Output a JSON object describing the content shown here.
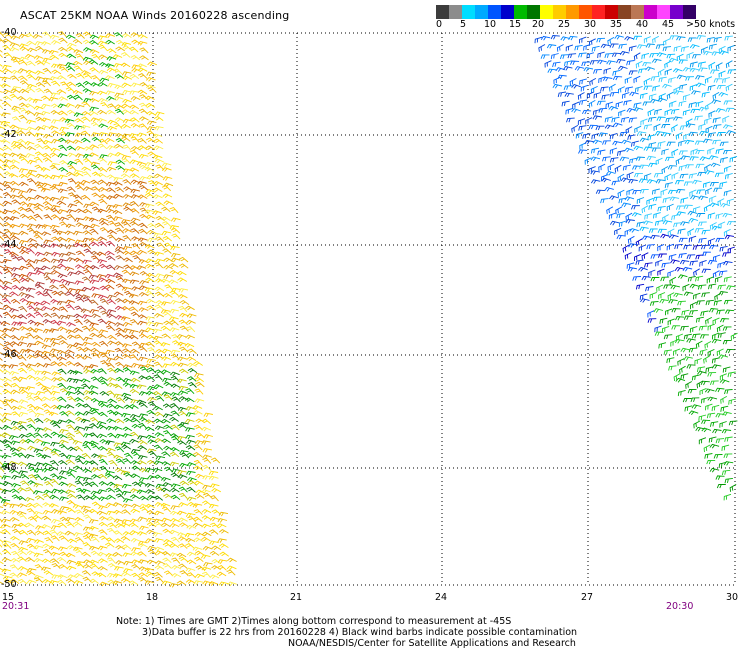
{
  "title": "ASCAT 25KM NOAA Winds 20160228 ascending",
  "colorbar": {
    "colors": [
      "#3c3c3c",
      "#8c8c8c",
      "#00ddff",
      "#00aaff",
      "#0055ff",
      "#0000cc",
      "#00bb00",
      "#007700",
      "#ffff00",
      "#ffcc00",
      "#ff9900",
      "#ff5500",
      "#ff2222",
      "#cc0000",
      "#884422",
      "#bb7755",
      "#cc00cc",
      "#ff44ff",
      "#7700cc",
      "#330066"
    ],
    "labels": [
      "0",
      "5",
      "10",
      "15",
      "20",
      "25",
      "30",
      "35",
      "40",
      "45",
      ">50 knots"
    ]
  },
  "lat_labels": [
    "-40",
    "-42",
    "-44",
    "-46",
    "-48",
    "-50"
  ],
  "lon_labels": [
    "15",
    "18",
    "21",
    "24",
    "27",
    "30"
  ],
  "times": {
    "left": "20:31",
    "right": "20:30"
  },
  "notes": {
    "line1": "Note: 1) Times are GMT 2)Times along bottom correspond to measurement at -45S",
    "line2": "3)Data buffer is 22 hrs from 20160228 4) Black wind barbs indicate possible contamination",
    "line3": "NOAA/NESDIS/Center for Satellite Applications and Research"
  }
}
